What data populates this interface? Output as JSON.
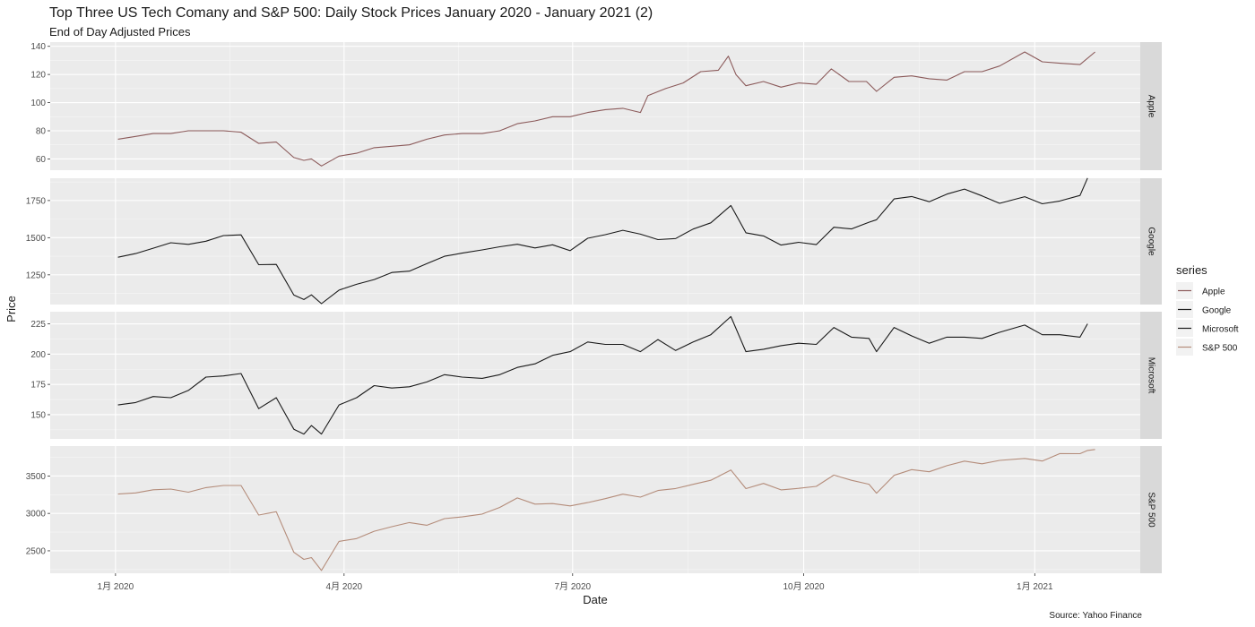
{
  "title": "Top Three US Tech Comany and S&P 500: Daily Stock Prices January 2020 - January 2021 (2)",
  "subtitle": "End of Day Adjusted Prices",
  "caption": "Source: Yahoo Finance",
  "chart_data": {
    "type": "line",
    "faceted": true,
    "facet_by": "series",
    "title": "Top Three US Tech Comany and S&P 500: Daily Stock Prices January 2020 - January 2021 (2)",
    "subtitle": "End of Day Adjusted Prices",
    "xlabel": "Date",
    "ylabel": "Price",
    "x_range": [
      "2019-12-06",
      "2021-02-12"
    ],
    "x_ticks": [
      {
        "date": "2020-01-01",
        "label": "1月 2020"
      },
      {
        "date": "2020-04-01",
        "label": "4月 2020"
      },
      {
        "date": "2020-07-01",
        "label": "7月 2020"
      },
      {
        "date": "2020-10-01",
        "label": "10月 2020"
      },
      {
        "date": "2021-01-01",
        "label": "1月 2021"
      }
    ],
    "legend": {
      "title": "series",
      "position": "right"
    },
    "grid": true,
    "series": [
      {
        "name": "Apple",
        "color": "#8b5a5a",
        "ylim": [
          52,
          143
        ],
        "y_ticks": [
          60,
          80,
          100,
          120,
          140
        ],
        "points": [
          [
            "2020-01-02",
            74
          ],
          [
            "2020-01-09",
            76
          ],
          [
            "2020-01-16",
            78
          ],
          [
            "2020-01-23",
            78
          ],
          [
            "2020-01-30",
            80
          ],
          [
            "2020-02-06",
            80
          ],
          [
            "2020-02-13",
            80
          ],
          [
            "2020-02-20",
            79
          ],
          [
            "2020-02-27",
            71
          ],
          [
            "2020-03-05",
            72
          ],
          [
            "2020-03-12",
            61
          ],
          [
            "2020-03-16",
            59
          ],
          [
            "2020-03-19",
            60
          ],
          [
            "2020-03-23",
            55
          ],
          [
            "2020-03-30",
            62
          ],
          [
            "2020-04-06",
            64
          ],
          [
            "2020-04-13",
            68
          ],
          [
            "2020-04-20",
            69
          ],
          [
            "2020-04-27",
            70
          ],
          [
            "2020-05-04",
            74
          ],
          [
            "2020-05-11",
            77
          ],
          [
            "2020-05-18",
            78
          ],
          [
            "2020-05-26",
            78
          ],
          [
            "2020-06-02",
            80
          ],
          [
            "2020-06-09",
            85
          ],
          [
            "2020-06-16",
            87
          ],
          [
            "2020-06-23",
            90
          ],
          [
            "2020-06-30",
            90
          ],
          [
            "2020-07-07",
            93
          ],
          [
            "2020-07-14",
            95
          ],
          [
            "2020-07-21",
            96
          ],
          [
            "2020-07-28",
            93
          ],
          [
            "2020-07-31",
            105
          ],
          [
            "2020-08-07",
            110
          ],
          [
            "2020-08-14",
            114
          ],
          [
            "2020-08-21",
            122
          ],
          [
            "2020-08-28",
            123
          ],
          [
            "2020-09-01",
            133
          ],
          [
            "2020-09-04",
            120
          ],
          [
            "2020-09-08",
            112
          ],
          [
            "2020-09-15",
            115
          ],
          [
            "2020-09-22",
            111
          ],
          [
            "2020-09-29",
            114
          ],
          [
            "2020-10-06",
            113
          ],
          [
            "2020-10-12",
            124
          ],
          [
            "2020-10-19",
            115
          ],
          [
            "2020-10-26",
            115
          ],
          [
            "2020-10-30",
            108
          ],
          [
            "2020-11-06",
            118
          ],
          [
            "2020-11-13",
            119
          ],
          [
            "2020-11-20",
            117
          ],
          [
            "2020-11-27",
            116
          ],
          [
            "2020-12-04",
            122
          ],
          [
            "2020-12-11",
            122
          ],
          [
            "2020-12-18",
            126
          ],
          [
            "2020-12-28",
            136
          ],
          [
            "2021-01-04",
            129
          ],
          [
            "2021-01-11",
            128
          ],
          [
            "2021-01-19",
            127
          ],
          [
            "2021-01-25",
            136
          ]
        ]
      },
      {
        "name": "Google",
        "color": "#1a1a1a",
        "ylim": [
          1050,
          1900
        ],
        "y_ticks": [
          1250,
          1500,
          1750
        ],
        "points": [
          [
            "2020-01-02",
            1368
          ],
          [
            "2020-01-09",
            1393
          ],
          [
            "2020-01-16",
            1429
          ],
          [
            "2020-01-23",
            1466
          ],
          [
            "2020-01-30",
            1455
          ],
          [
            "2020-02-06",
            1476
          ],
          [
            "2020-02-13",
            1514
          ],
          [
            "2020-02-20",
            1519
          ],
          [
            "2020-02-27",
            1318
          ],
          [
            "2020-03-05",
            1320
          ],
          [
            "2020-03-12",
            1114
          ],
          [
            "2020-03-16",
            1084
          ],
          [
            "2020-03-19",
            1115
          ],
          [
            "2020-03-23",
            1056
          ],
          [
            "2020-03-30",
            1147
          ],
          [
            "2020-04-06",
            1186
          ],
          [
            "2020-04-13",
            1218
          ],
          [
            "2020-04-20",
            1266
          ],
          [
            "2020-04-27",
            1275
          ],
          [
            "2020-05-04",
            1326
          ],
          [
            "2020-05-11",
            1375
          ],
          [
            "2020-05-18",
            1396
          ],
          [
            "2020-05-26",
            1418
          ],
          [
            "2020-06-02",
            1439
          ],
          [
            "2020-06-09",
            1456
          ],
          [
            "2020-06-16",
            1431
          ],
          [
            "2020-06-23",
            1452
          ],
          [
            "2020-06-30",
            1413
          ],
          [
            "2020-07-07",
            1496
          ],
          [
            "2020-07-14",
            1520
          ],
          [
            "2020-07-21",
            1550
          ],
          [
            "2020-07-28",
            1524
          ],
          [
            "2020-08-04",
            1487
          ],
          [
            "2020-08-11",
            1494
          ],
          [
            "2020-08-18",
            1558
          ],
          [
            "2020-08-25",
            1600
          ],
          [
            "2020-09-02",
            1717
          ],
          [
            "2020-09-08",
            1533
          ],
          [
            "2020-09-15",
            1512
          ],
          [
            "2020-09-22",
            1450
          ],
          [
            "2020-09-29",
            1469
          ],
          [
            "2020-10-06",
            1453
          ],
          [
            "2020-10-13",
            1570
          ],
          [
            "2020-10-20",
            1559
          ],
          [
            "2020-10-27",
            1604
          ],
          [
            "2020-10-30",
            1621
          ],
          [
            "2020-11-06",
            1761
          ],
          [
            "2020-11-13",
            1777
          ],
          [
            "2020-11-20",
            1742
          ],
          [
            "2020-11-27",
            1793
          ],
          [
            "2020-12-04",
            1827
          ],
          [
            "2020-12-11",
            1781
          ],
          [
            "2020-12-18",
            1731
          ],
          [
            "2020-12-28",
            1776
          ],
          [
            "2021-01-04",
            1728
          ],
          [
            "2021-01-11",
            1747
          ],
          [
            "2021-01-19",
            1784
          ],
          [
            "2021-01-22",
            1901
          ]
        ]
      },
      {
        "name": "Microsoft",
        "color": "#1a1a1a",
        "ylim": [
          130,
          235
        ],
        "y_ticks": [
          150,
          175,
          200,
          225
        ],
        "points": [
          [
            "2020-01-02",
            158
          ],
          [
            "2020-01-09",
            160
          ],
          [
            "2020-01-16",
            165
          ],
          [
            "2020-01-23",
            164
          ],
          [
            "2020-01-30",
            170
          ],
          [
            "2020-02-06",
            181
          ],
          [
            "2020-02-13",
            182
          ],
          [
            "2020-02-20",
            184
          ],
          [
            "2020-02-27",
            155
          ],
          [
            "2020-03-05",
            164
          ],
          [
            "2020-03-12",
            138
          ],
          [
            "2020-03-16",
            134
          ],
          [
            "2020-03-19",
            141
          ],
          [
            "2020-03-23",
            134
          ],
          [
            "2020-03-30",
            158
          ],
          [
            "2020-04-06",
            164
          ],
          [
            "2020-04-13",
            174
          ],
          [
            "2020-04-20",
            172
          ],
          [
            "2020-04-27",
            173
          ],
          [
            "2020-05-04",
            177
          ],
          [
            "2020-05-11",
            183
          ],
          [
            "2020-05-18",
            181
          ],
          [
            "2020-05-26",
            180
          ],
          [
            "2020-06-02",
            183
          ],
          [
            "2020-06-09",
            189
          ],
          [
            "2020-06-16",
            192
          ],
          [
            "2020-06-23",
            199
          ],
          [
            "2020-06-30",
            202
          ],
          [
            "2020-07-07",
            210
          ],
          [
            "2020-07-14",
            208
          ],
          [
            "2020-07-21",
            208
          ],
          [
            "2020-07-28",
            202
          ],
          [
            "2020-08-04",
            212
          ],
          [
            "2020-08-11",
            203
          ],
          [
            "2020-08-18",
            210
          ],
          [
            "2020-08-25",
            216
          ],
          [
            "2020-09-02",
            231
          ],
          [
            "2020-09-08",
            202
          ],
          [
            "2020-09-15",
            204
          ],
          [
            "2020-09-22",
            207
          ],
          [
            "2020-09-29",
            209
          ],
          [
            "2020-10-06",
            208
          ],
          [
            "2020-10-13",
            222
          ],
          [
            "2020-10-20",
            214
          ],
          [
            "2020-10-27",
            213
          ],
          [
            "2020-10-30",
            202
          ],
          [
            "2020-11-06",
            222
          ],
          [
            "2020-11-13",
            215
          ],
          [
            "2020-11-20",
            209
          ],
          [
            "2020-11-27",
            214
          ],
          [
            "2020-12-04",
            214
          ],
          [
            "2020-12-11",
            213
          ],
          [
            "2020-12-18",
            218
          ],
          [
            "2020-12-28",
            224
          ],
          [
            "2021-01-04",
            216
          ],
          [
            "2021-01-11",
            216
          ],
          [
            "2021-01-19",
            214
          ],
          [
            "2021-01-22",
            225
          ]
        ]
      },
      {
        "name": "S&P 500",
        "color": "#b48c7a",
        "ylim": [
          2200,
          3900
        ],
        "y_ticks": [
          2500,
          3000,
          3500
        ],
        "points": [
          [
            "2020-01-02",
            3258
          ],
          [
            "2020-01-09",
            3274
          ],
          [
            "2020-01-16",
            3316
          ],
          [
            "2020-01-23",
            3325
          ],
          [
            "2020-01-30",
            3283
          ],
          [
            "2020-02-06",
            3345
          ],
          [
            "2020-02-13",
            3373
          ],
          [
            "2020-02-20",
            3373
          ],
          [
            "2020-02-27",
            2978
          ],
          [
            "2020-03-05",
            3023
          ],
          [
            "2020-03-12",
            2480
          ],
          [
            "2020-03-16",
            2386
          ],
          [
            "2020-03-19",
            2409
          ],
          [
            "2020-03-23",
            2237
          ],
          [
            "2020-03-30",
            2626
          ],
          [
            "2020-04-06",
            2663
          ],
          [
            "2020-04-13",
            2761
          ],
          [
            "2020-04-20",
            2823
          ],
          [
            "2020-04-27",
            2878
          ],
          [
            "2020-05-04",
            2842
          ],
          [
            "2020-05-11",
            2930
          ],
          [
            "2020-05-18",
            2953
          ],
          [
            "2020-05-26",
            2991
          ],
          [
            "2020-06-02",
            3080
          ],
          [
            "2020-06-09",
            3207
          ],
          [
            "2020-06-16",
            3124
          ],
          [
            "2020-06-23",
            3131
          ],
          [
            "2020-06-30",
            3100
          ],
          [
            "2020-07-07",
            3145
          ],
          [
            "2020-07-14",
            3197
          ],
          [
            "2020-07-21",
            3257
          ],
          [
            "2020-07-28",
            3218
          ],
          [
            "2020-08-04",
            3306
          ],
          [
            "2020-08-11",
            3333
          ],
          [
            "2020-08-18",
            3389
          ],
          [
            "2020-08-25",
            3443
          ],
          [
            "2020-09-02",
            3580
          ],
          [
            "2020-09-08",
            3331
          ],
          [
            "2020-09-15",
            3401
          ],
          [
            "2020-09-22",
            3315
          ],
          [
            "2020-09-29",
            3335
          ],
          [
            "2020-10-06",
            3361
          ],
          [
            "2020-10-13",
            3512
          ],
          [
            "2020-10-20",
            3443
          ],
          [
            "2020-10-27",
            3390
          ],
          [
            "2020-10-30",
            3270
          ],
          [
            "2020-11-06",
            3509
          ],
          [
            "2020-11-13",
            3585
          ],
          [
            "2020-11-20",
            3557
          ],
          [
            "2020-11-27",
            3638
          ],
          [
            "2020-12-04",
            3699
          ],
          [
            "2020-12-11",
            3663
          ],
          [
            "2020-12-18",
            3709
          ],
          [
            "2020-12-28",
            3735
          ],
          [
            "2021-01-04",
            3700
          ],
          [
            "2021-01-11",
            3799
          ],
          [
            "2021-01-19",
            3798
          ],
          [
            "2021-01-22",
            3841
          ],
          [
            "2021-01-25",
            3855
          ]
        ]
      }
    ]
  }
}
